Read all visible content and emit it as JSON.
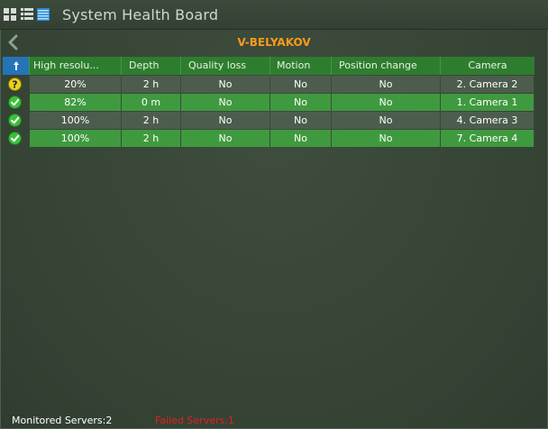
{
  "app": {
    "title": "System Health Board"
  },
  "toolbar": {
    "icons": [
      "grid-view-icon",
      "list-view-icon",
      "detail-view-icon"
    ]
  },
  "server": {
    "name": "V-BELYAKOV"
  },
  "table": {
    "columns": [
      "",
      "High resolu...",
      "Depth",
      "Quality loss",
      "Motion",
      "Position change",
      "Camera"
    ],
    "rows": [
      {
        "status": "warning",
        "high_res": "20%",
        "depth": "2 h",
        "quality_loss": "No",
        "motion": "No",
        "position_change": "No",
        "camera": "2. Camera 2"
      },
      {
        "status": "ok",
        "high_res": "82%",
        "depth": "0 m",
        "quality_loss": "No",
        "motion": "No",
        "position_change": "No",
        "camera": "1. Camera 1"
      },
      {
        "status": "ok",
        "high_res": "100%",
        "depth": "2 h",
        "quality_loss": "No",
        "motion": "No",
        "position_change": "No",
        "camera": "4. Camera 3"
      },
      {
        "status": "ok",
        "high_res": "100%",
        "depth": "2 h",
        "quality_loss": "No",
        "motion": "No",
        "position_change": "No",
        "camera": "7. Camera 4"
      }
    ]
  },
  "footer": {
    "monitored": "Monitored Servers:2",
    "failed": "Failed Servers:1"
  },
  "colors": {
    "accent_orange": "#ff9a1a",
    "failed_red": "#e02020",
    "header_green": "#2e7d2e",
    "sort_blue": "#2474b8"
  }
}
